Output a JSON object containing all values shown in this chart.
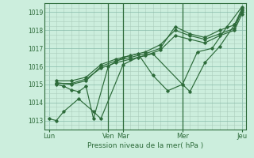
{
  "bg_color": "#cceedd",
  "grid_color_minor": "#aaccbb",
  "grid_color_major": "#88bbaa",
  "line_color": "#2d6b3a",
  "tick_label_color": "#2d6b3a",
  "xlabel": "Pression niveau de la mer( hPa )",
  "ylim": [
    1012.5,
    1019.5
  ],
  "yticks": [
    1013,
    1014,
    1015,
    1016,
    1017,
    1018,
    1019
  ],
  "xlim": [
    -0.3,
    13.3
  ],
  "xtick_positions": [
    0,
    4,
    5,
    9,
    13
  ],
  "xtick_labels": [
    "Lun",
    "Ven",
    "Mar",
    "Mer",
    "Jeu"
  ],
  "vline_positions": [
    4,
    5,
    9
  ],
  "series_x": [
    [
      0,
      0.5,
      1.0,
      2.0,
      3.0,
      3.5,
      5.0,
      6.0,
      7.0,
      9.0,
      9.5,
      10.5,
      11.5,
      12.5,
      13.0
    ],
    [
      0.5,
      1.0,
      1.5,
      2.0,
      2.5,
      3.0,
      4.0,
      5.0,
      6.0,
      7.0,
      8.0,
      9.0,
      10.0,
      11.0,
      12.0,
      13.0
    ],
    [
      0.5,
      1.5,
      2.5,
      3.5,
      4.5,
      5.5,
      6.5,
      7.5,
      8.5,
      9.5,
      10.5,
      11.5,
      12.5,
      13.0
    ],
    [
      0.5,
      1.5,
      2.5,
      3.5,
      4.5,
      5.5,
      6.5,
      7.5,
      8.5,
      9.5,
      10.5,
      11.5,
      12.5,
      13.0
    ],
    [
      0.5,
      1.5,
      2.5,
      3.5,
      4.5,
      5.5,
      6.5,
      7.5,
      8.5,
      9.5,
      10.5,
      11.5,
      12.5,
      13.0
    ]
  ],
  "series_y": [
    [
      1013.1,
      1013.0,
      1013.5,
      1014.2,
      1013.5,
      1013.1,
      1016.1,
      1016.5,
      1016.7,
      1015.0,
      1014.6,
      1016.2,
      1017.1,
      1018.3,
      1019.2
    ],
    [
      1015.0,
      1014.9,
      1014.7,
      1014.6,
      1014.9,
      1013.1,
      1016.0,
      1016.5,
      1016.7,
      1015.5,
      1014.65,
      1015.0,
      1016.8,
      1017.0,
      1018.2,
      1019.3
    ],
    [
      1015.1,
      1015.0,
      1015.2,
      1016.0,
      1016.3,
      1016.5,
      1016.7,
      1017.0,
      1018.2,
      1017.8,
      1017.6,
      1018.0,
      1018.3,
      1019.0
    ],
    [
      1015.2,
      1015.2,
      1015.4,
      1016.1,
      1016.4,
      1016.6,
      1016.8,
      1017.2,
      1018.0,
      1017.7,
      1017.5,
      1017.8,
      1018.1,
      1019.1
    ],
    [
      1015.05,
      1015.05,
      1015.3,
      1015.9,
      1016.2,
      1016.4,
      1016.6,
      1016.9,
      1017.7,
      1017.5,
      1017.3,
      1017.7,
      1018.0,
      1018.9
    ]
  ]
}
